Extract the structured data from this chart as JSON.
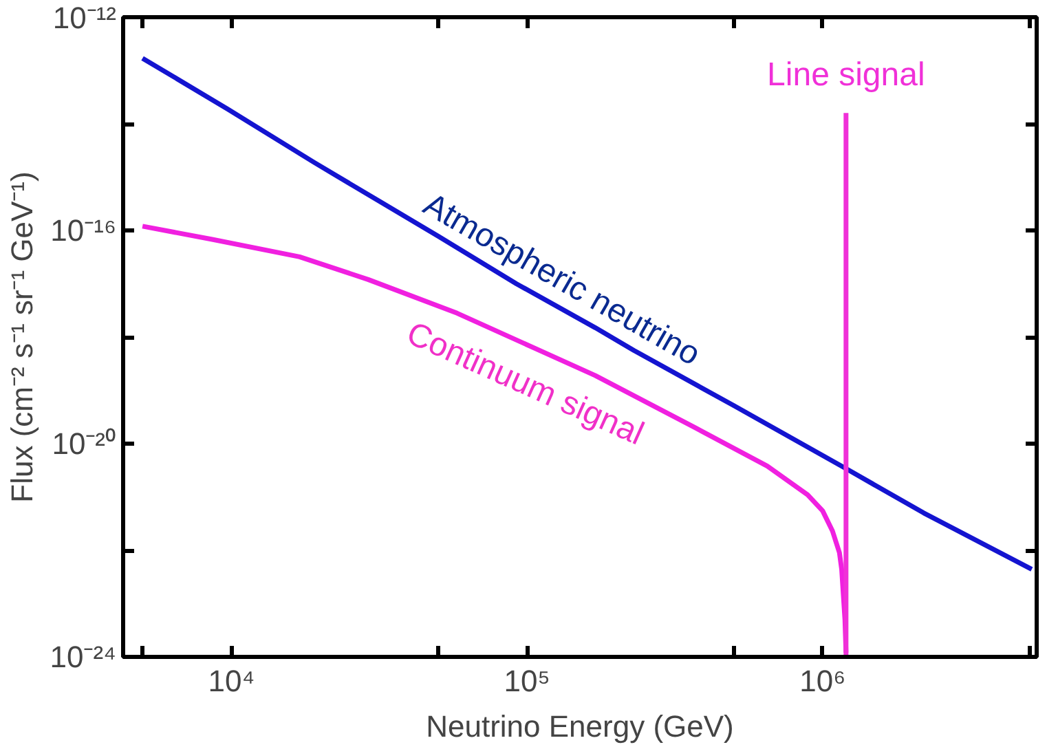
{
  "chart_data": {
    "type": "line",
    "xlabel": "Neutrino Energy (GeV)",
    "ylabel": "Flux (cm⁻² s⁻¹ sr⁻¹ GeV⁻¹)",
    "log": "xy",
    "grid": false,
    "legend": false,
    "xlim": [
      4300,
      5300000
    ],
    "ylim": [
      1e-24,
      1e-12
    ],
    "xticks": [
      {
        "value": 5000,
        "label": null
      },
      {
        "value": 10000,
        "label": "10⁴"
      },
      {
        "value": 50000,
        "label": null
      },
      {
        "value": 100000,
        "label": "10⁵"
      },
      {
        "value": 500000,
        "label": null
      },
      {
        "value": 1000000,
        "label": "10⁶"
      },
      {
        "value": 5000000,
        "label": null
      }
    ],
    "yticks": [
      {
        "value": 1e-12,
        "label": "10⁻¹²"
      },
      {
        "value": 1e-14,
        "label": null
      },
      {
        "value": 1e-16,
        "label": "10⁻¹⁶"
      },
      {
        "value": 1e-18,
        "label": null
      },
      {
        "value": 1e-20,
        "label": "10⁻²⁰"
      },
      {
        "value": 1e-22,
        "label": null
      },
      {
        "value": 1e-24,
        "label": "10⁻²⁴"
      }
    ],
    "series": [
      {
        "name": "Atmospheric neutrino",
        "color": "#1414d0",
        "x": [
          5000,
          9700,
          19000,
          32000,
          50000,
          92000,
          170000,
          230000,
          500000,
          1200000,
          2200000,
          5100000
        ],
        "values": [
          1.7e-13,
          1.9e-14,
          1.9e-15,
          3.4e-16,
          7.8e-17,
          1e-17,
          1.5e-18,
          5.6e-19,
          5.2e-20,
          3.4e-21,
          5e-22,
          4.4e-23
        ]
      },
      {
        "name": "Continuum signal",
        "color": "#f020e0",
        "x": [
          5000,
          8600,
          17000,
          29000,
          58000,
          170000,
          370000,
          650000,
          890000,
          1000000,
          1080000,
          1140000,
          1160000,
          1190000,
          1200000
        ],
        "values": [
          1.2e-16,
          6.8e-17,
          3.2e-17,
          1.2e-17,
          2.8e-18,
          1.9e-19,
          2e-20,
          3.8e-21,
          1.1e-21,
          5.5e-22,
          2.3e-22,
          9e-23,
          4.4e-23,
          5e-24,
          1.2e-24
        ]
      },
      {
        "name": "Line signal",
        "color": "#f030d8",
        "x": [
          1200000,
          1200000
        ],
        "values": [
          1e-24,
          1.6e-14
        ]
      }
    ]
  }
}
